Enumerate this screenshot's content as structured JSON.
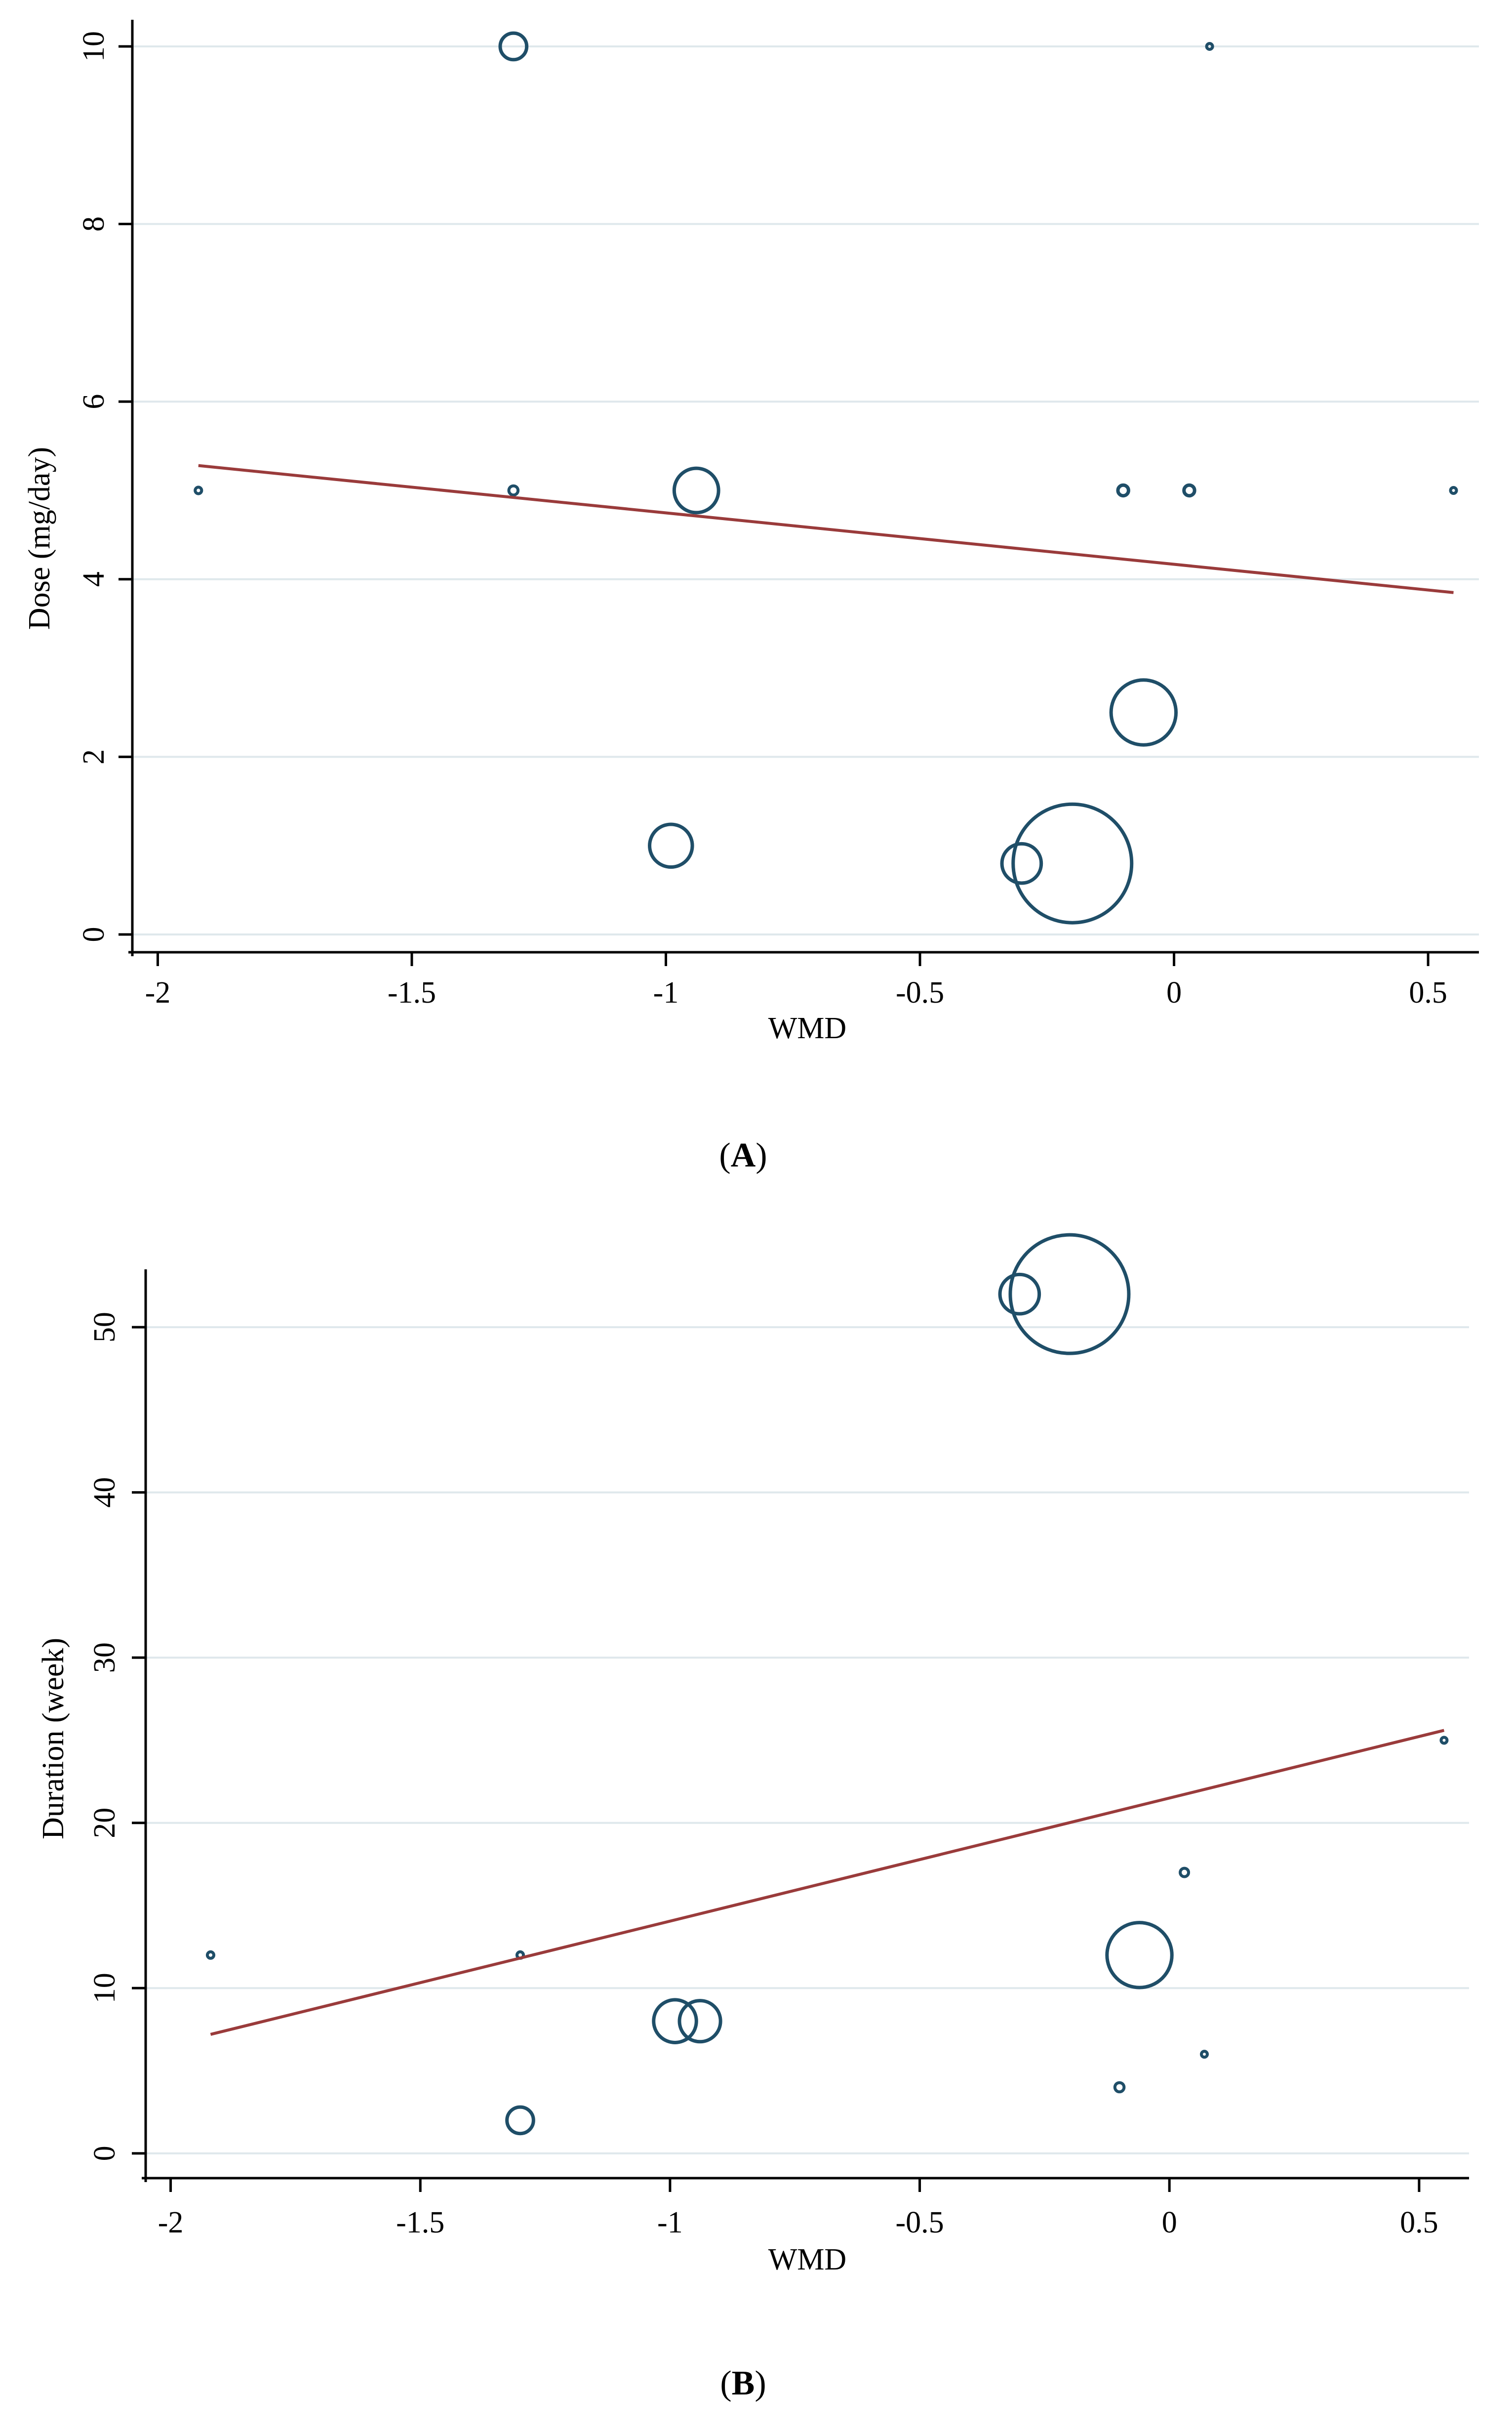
{
  "chart_data": [
    {
      "type": "scatter",
      "panel_label": "A",
      "title": "",
      "xlabel": "WMD",
      "ylabel": "Dose (mg/day)",
      "xlim": [
        -2.05,
        0.6
      ],
      "ylim": [
        -0.2,
        10.3
      ],
      "xticks": [
        -2,
        -1.5,
        -1,
        -0.5,
        0,
        0.5
      ],
      "xtick_labels": [
        "-2",
        "-1.5",
        "-1",
        "-0.5",
        "0",
        "0.5"
      ],
      "yticks": [
        0,
        2,
        4,
        6,
        8,
        10
      ],
      "ytick_labels": [
        "0",
        "2",
        "4",
        "6",
        "8",
        "10"
      ],
      "grid": true,
      "points": [
        {
          "x": -1.92,
          "y": 5,
          "weight": 0.3
        },
        {
          "x": -1.3,
          "y": 10,
          "weight": 5
        },
        {
          "x": -1.3,
          "y": 5,
          "weight": 0.6
        },
        {
          "x": -0.94,
          "y": 5,
          "weight": 14
        },
        {
          "x": -0.99,
          "y": 1,
          "weight": 13
        },
        {
          "x": -0.3,
          "y": 0.8,
          "weight": 11
        },
        {
          "x": -0.2,
          "y": 0.8,
          "weight": 100
        },
        {
          "x": -0.06,
          "y": 2.5,
          "weight": 30
        },
        {
          "x": -0.1,
          "y": 5,
          "weight": 0.8
        },
        {
          "x": 0.03,
          "y": 5,
          "weight": 0.8
        },
        {
          "x": 0.07,
          "y": 10,
          "weight": 0.1
        },
        {
          "x": 0.55,
          "y": 5,
          "weight": 0.1
        }
      ],
      "fit_line": {
        "x": [
          -1.92,
          0.55
        ],
        "y": [
          5.28,
          3.85
        ]
      }
    },
    {
      "type": "scatter",
      "panel_label": "B",
      "title": "",
      "xlabel": "WMD",
      "ylabel": "Duration (week)",
      "xlim": [
        -2.05,
        0.6
      ],
      "ylim": [
        -1.5,
        53.5
      ],
      "xticks": [
        -2,
        -1.5,
        -1,
        -0.5,
        0,
        0.5
      ],
      "xtick_labels": [
        "-2",
        "-1.5",
        "-1",
        "-0.5",
        "0",
        "0.5"
      ],
      "yticks": [
        0,
        10,
        20,
        30,
        40,
        50
      ],
      "ytick_labels": [
        "0",
        "10",
        "20",
        "30",
        "40",
        "50"
      ],
      "grid": true,
      "points": [
        {
          "x": -1.92,
          "y": 12,
          "weight": 0.3
        },
        {
          "x": -1.3,
          "y": 12,
          "weight": 0.3
        },
        {
          "x": -1.3,
          "y": 2,
          "weight": 5
        },
        {
          "x": -0.99,
          "y": 8,
          "weight": 13
        },
        {
          "x": -0.94,
          "y": 8,
          "weight": 12
        },
        {
          "x": -0.3,
          "y": 52,
          "weight": 11
        },
        {
          "x": -0.2,
          "y": 52,
          "weight": 100
        },
        {
          "x": -0.06,
          "y": 12,
          "weight": 30
        },
        {
          "x": -0.1,
          "y": 4,
          "weight": 0.6
        },
        {
          "x": 0.03,
          "y": 17,
          "weight": 0.5
        },
        {
          "x": 0.07,
          "y": 6,
          "weight": 0.1
        },
        {
          "x": 0.55,
          "y": 25,
          "weight": 0.1
        }
      ],
      "fit_line": {
        "x": [
          -1.92,
          0.55
        ],
        "y": [
          7.2,
          25.6
        ]
      }
    }
  ],
  "colors": {
    "marker": "#1f4e68",
    "fit_line": "#9a3b3b",
    "grid": "#dfe8ec",
    "axis": "#000000"
  }
}
